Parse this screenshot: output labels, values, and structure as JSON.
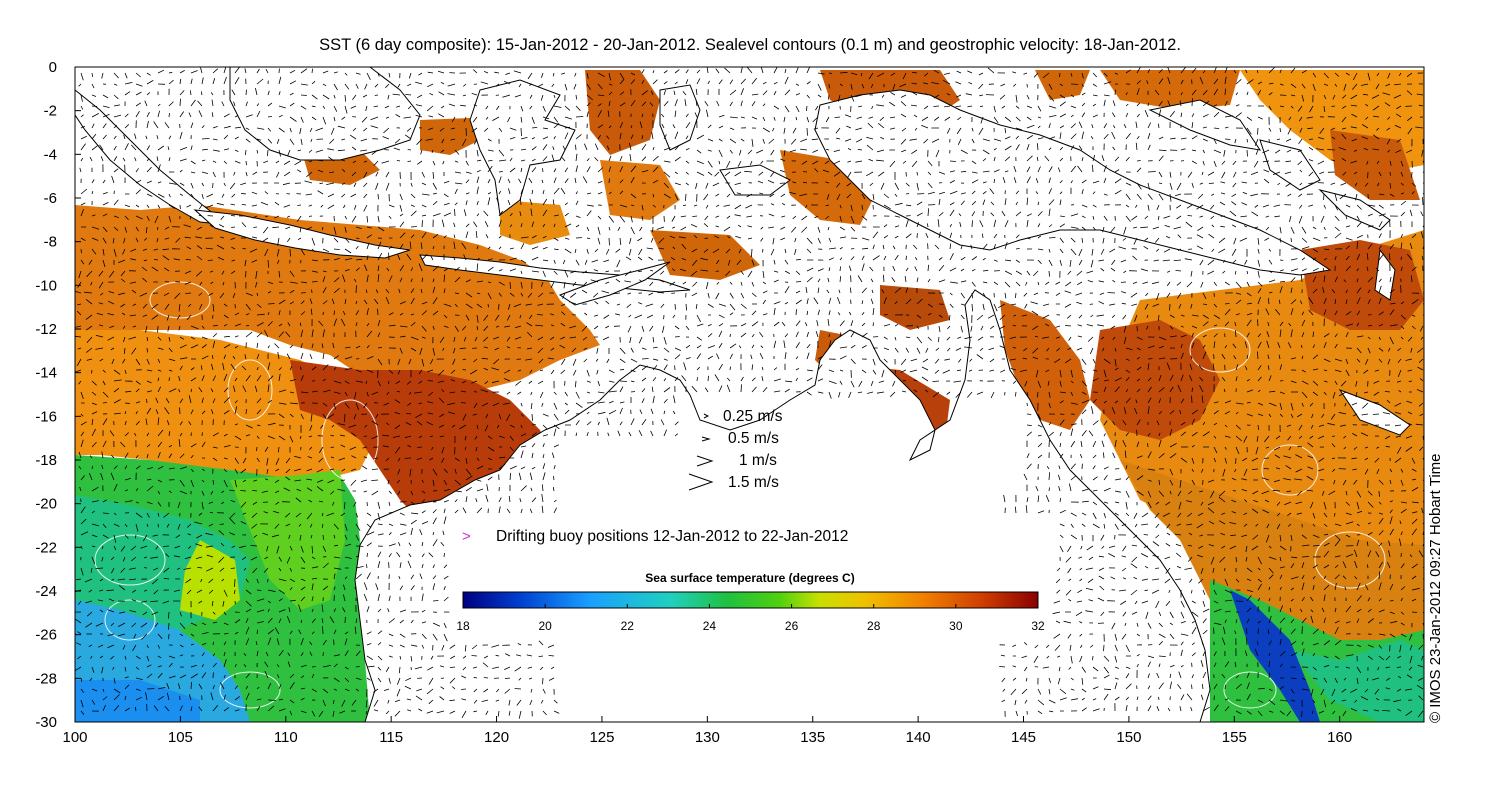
{
  "title": "SST (6 day composite): 15-Jan-2012 - 20-Jan-2012. Sealevel contours (0.1 m) and geostrophic velocity: 18-Jan-2012.",
  "credit": "© IMOS 23-Jan-2012 09:27 Hobart Time",
  "map": {
    "x_ticks": [
      100,
      105,
      110,
      115,
      120,
      125,
      130,
      135,
      140,
      145,
      150,
      155,
      160
    ],
    "y_ticks": [
      0,
      -2,
      -4,
      -6,
      -8,
      -10,
      -12,
      -14,
      -16,
      -18,
      -20,
      -22,
      -24,
      -26,
      -28,
      -30
    ],
    "lon_range": [
      100,
      164
    ],
    "lat_range": [
      -30,
      0
    ]
  },
  "velocity_legend": [
    {
      "label": "0.25 m/s",
      "speed": 0.25
    },
    {
      "label": "0.5 m/s",
      "speed": 0.5
    },
    {
      "label": "1 m/s",
      "speed": 1
    },
    {
      "label": "1.5 m/s",
      "speed": 1.5
    }
  ],
  "buoy_legend": {
    "symbol": ">",
    "label": "Drifting buoy positions 12-Jan-2012 to 22-Jan-2012",
    "color": "#cc33cc"
  },
  "colorbar": {
    "title": "Sea surface temperature (degrees C)",
    "ticks": [
      "18",
      "20",
      "22",
      "24",
      "26",
      "28",
      "30",
      "32"
    ],
    "range": [
      18,
      32
    ],
    "colors": [
      "#000080",
      "#0040d0",
      "#1a9fff",
      "#20d0c0",
      "#20c040",
      "#50d010",
      "#c8e000",
      "#f0c000",
      "#f08000",
      "#d04000",
      "#8a0000"
    ]
  }
}
